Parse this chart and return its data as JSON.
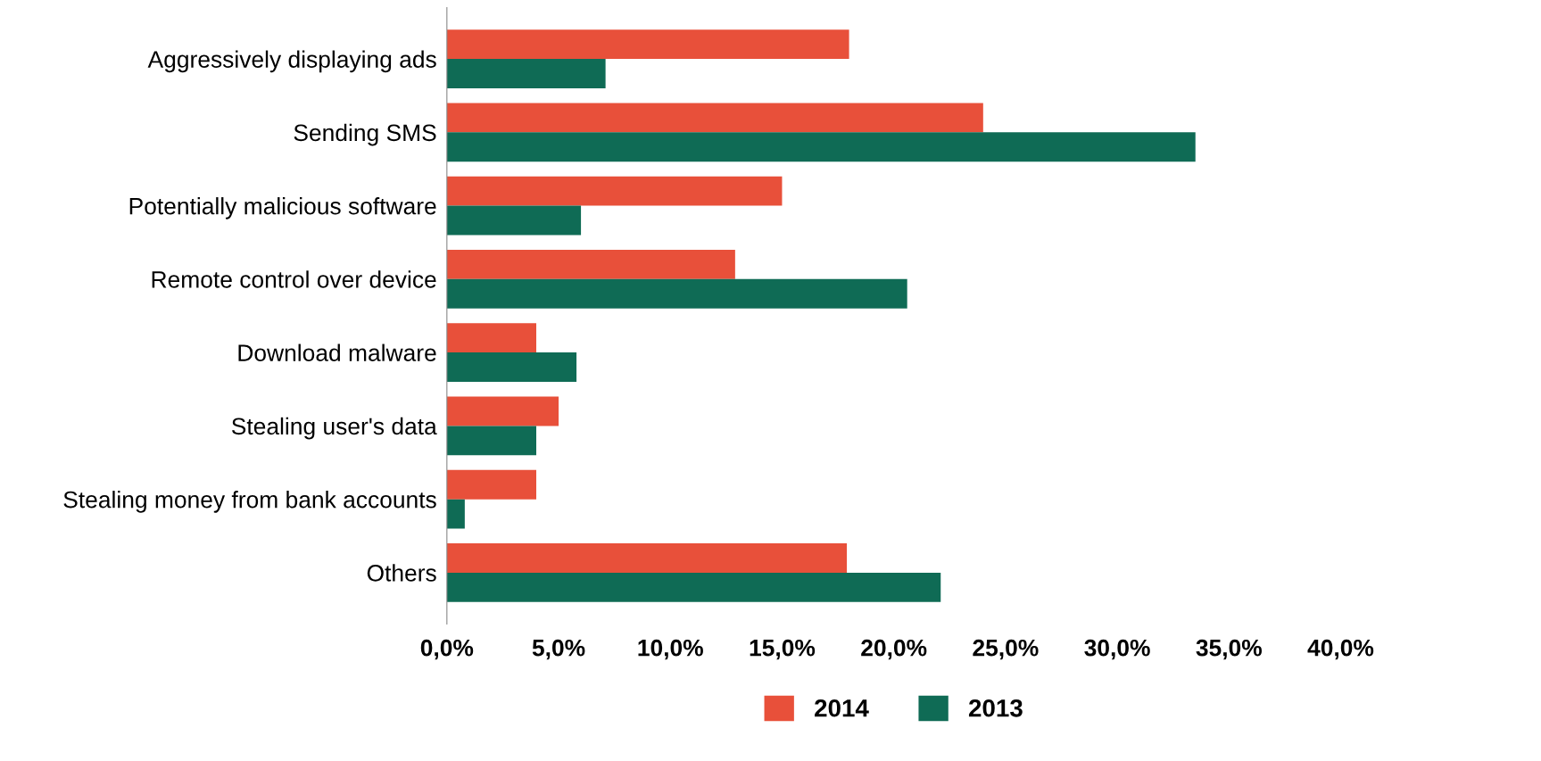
{
  "chart_data": {
    "type": "bar",
    "orientation": "horizontal",
    "categories": [
      "Aggressively displaying ads",
      "Sending SMS",
      "Potentially malicious software",
      "Remote control over device",
      "Download malware",
      "Stealing user's data",
      "Stealing money from bank accounts",
      "Others"
    ],
    "series": [
      {
        "name": "2014",
        "color": "#e8503a",
        "values": [
          18.0,
          24.0,
          15.0,
          12.9,
          4.0,
          5.0,
          4.0,
          17.9
        ]
      },
      {
        "name": "2013",
        "color": "#0f6b55",
        "values": [
          7.1,
          33.5,
          6.0,
          20.6,
          5.8,
          4.0,
          0.8,
          22.1
        ]
      }
    ],
    "xlim": [
      0,
      40
    ],
    "xticks": [
      {
        "value": 0,
        "label": "0,0%"
      },
      {
        "value": 5,
        "label": "5,0%"
      },
      {
        "value": 10,
        "label": "10,0%"
      },
      {
        "value": 15,
        "label": "15,0%"
      },
      {
        "value": 20,
        "label": "20,0%"
      },
      {
        "value": 25,
        "label": "25,0%"
      },
      {
        "value": 30,
        "label": "30,0%"
      },
      {
        "value": 35,
        "label": "35,0%"
      },
      {
        "value": 40,
        "label": "40,0%"
      }
    ],
    "grid": false,
    "legend": "bottom"
  }
}
